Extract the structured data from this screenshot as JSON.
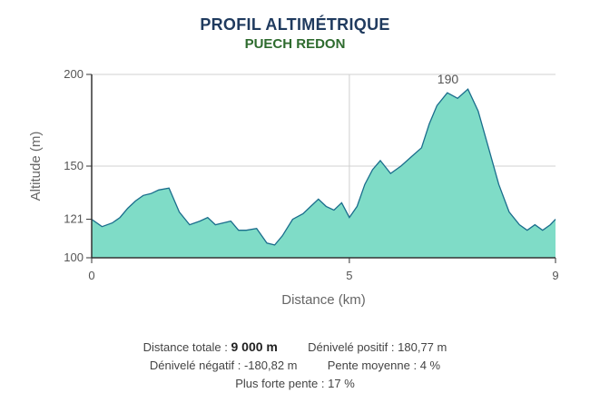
{
  "chart_data": {
    "type": "area",
    "title": "PROFIL ALTIMÉTRIQUE",
    "subtitle": "PUECH REDON",
    "xlabel": "Distance (km)",
    "ylabel": "Altitude (m)",
    "xlim": [
      0,
      9
    ],
    "ylim": [
      100,
      200
    ],
    "xticks": [
      "0",
      "5",
      "9"
    ],
    "yticks": [
      "100",
      "121",
      "150",
      "200"
    ],
    "annotation": "190",
    "grid": true,
    "color": "#7fdcc7",
    "line_color": "#1a6d8c",
    "x": [
      0,
      0.2,
      0.4,
      0.55,
      0.7,
      0.85,
      1.0,
      1.15,
      1.3,
      1.5,
      1.7,
      1.9,
      2.1,
      2.25,
      2.4,
      2.55,
      2.7,
      2.85,
      3.0,
      3.2,
      3.4,
      3.55,
      3.7,
      3.9,
      4.1,
      4.25,
      4.4,
      4.55,
      4.7,
      4.85,
      5.0,
      5.15,
      5.3,
      5.45,
      5.6,
      5.8,
      6.0,
      6.2,
      6.4,
      6.55,
      6.7,
      6.9,
      7.1,
      7.3,
      7.5,
      7.7,
      7.9,
      8.1,
      8.3,
      8.45,
      8.6,
      8.75,
      8.9,
      9.0
    ],
    "y": [
      121,
      117,
      119,
      122,
      127,
      131,
      134,
      135,
      137,
      138,
      125,
      118,
      120,
      122,
      118,
      119,
      120,
      115,
      115,
      116,
      108,
      107,
      112,
      121,
      124,
      128,
      132,
      128,
      126,
      130,
      122,
      128,
      140,
      148,
      153,
      146,
      150,
      155,
      160,
      173,
      183,
      190,
      187,
      192,
      180,
      160,
      140,
      125,
      118,
      115,
      118,
      115,
      118,
      121
    ]
  },
  "stats": {
    "distance_label": "Distance totale :",
    "distance_value": "9 000 m",
    "dplus_label": "Dénivelé positif :",
    "dplus_value": "180,77 m",
    "dminus_label": "Dénivelé négatif :",
    "dminus_value": "-180,82 m",
    "slope_label": "Pente moyenne :",
    "slope_value": "4 %",
    "max_slope_label": "Plus forte pente :",
    "max_slope_value": "17 %"
  }
}
